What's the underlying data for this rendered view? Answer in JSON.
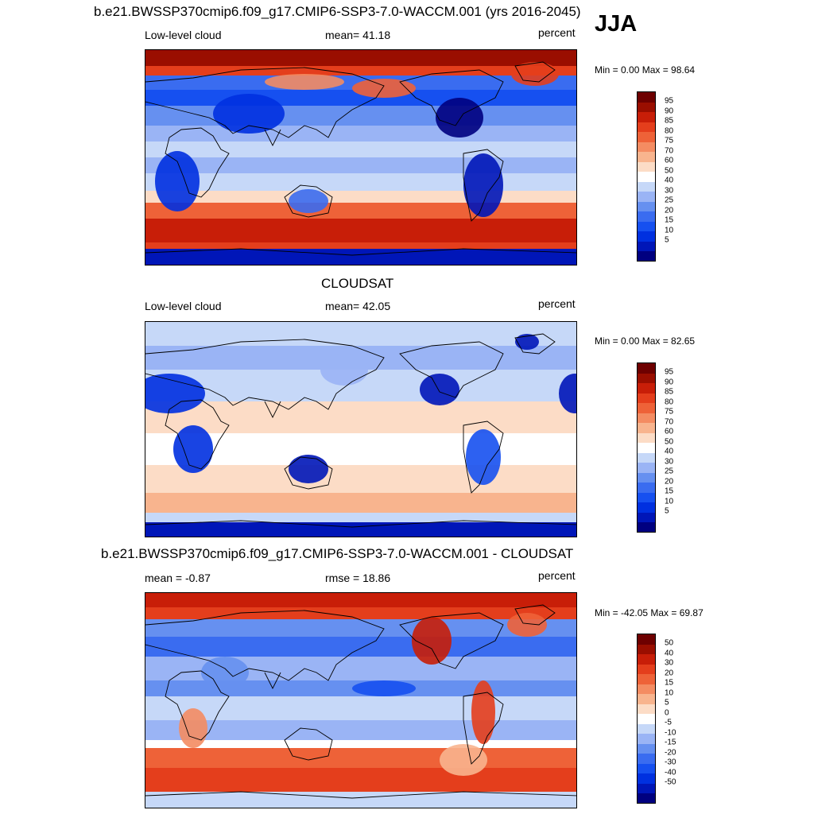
{
  "season": "JJA",
  "panels": [
    {
      "title": "b.e21.BWSSP370cmip6.f09_g17.CMIP6-SSP3-7.0-WACCM.001 (yrs 2016-2045)",
      "left_label": "Low-level cloud",
      "center_label": "mean=  41.18",
      "right_label": "percent",
      "minmax": "Min =   0.00 Max =  98.64",
      "pattern": "model",
      "colorbar": {
        "colors": [
          "#000080",
          "#0016b8",
          "#0030e0",
          "#1650f0",
          "#3a6cf0",
          "#6690f0",
          "#9ab4f5",
          "#c6d8f8",
          "#ffffff",
          "#fcdcc6",
          "#f8b48e",
          "#f48c62",
          "#ee6238",
          "#e43e1c",
          "#c81e08",
          "#9a0e00",
          "#6e0000"
        ],
        "labels": [
          "95",
          "90",
          "85",
          "80",
          "75",
          "70",
          "60",
          "50",
          "40",
          "30",
          "25",
          "20",
          "15",
          "10",
          "5"
        ]
      }
    },
    {
      "title": "CLOUDSAT",
      "left_label": "Low-level cloud",
      "center_label": "mean=  42.05",
      "right_label": "percent",
      "minmax": "Min =   0.00 Max =  82.65",
      "pattern": "obs",
      "colorbar": {
        "colors": [
          "#000080",
          "#0016b8",
          "#0030e0",
          "#1650f0",
          "#3a6cf0",
          "#6690f0",
          "#9ab4f5",
          "#c6d8f8",
          "#ffffff",
          "#fcdcc6",
          "#f8b48e",
          "#f48c62",
          "#ee6238",
          "#e43e1c",
          "#c81e08",
          "#9a0e00",
          "#6e0000"
        ],
        "labels": [
          "95",
          "90",
          "85",
          "80",
          "75",
          "70",
          "60",
          "50",
          "40",
          "30",
          "25",
          "20",
          "15",
          "10",
          "5"
        ]
      }
    },
    {
      "title": "b.e21.BWSSP370cmip6.f09_g17.CMIP6-SSP3-7.0-WACCM.001 - CLOUDSAT",
      "left_label": "mean =  -0.87",
      "center_label": "rmse =  18.86",
      "right_label": "percent",
      "minmax": "Min = -42.05 Max =  69.87",
      "pattern": "diff",
      "colorbar": {
        "colors": [
          "#000080",
          "#0016b8",
          "#0030e0",
          "#1650f0",
          "#3a6cf0",
          "#6690f0",
          "#9ab4f5",
          "#c6d8f8",
          "#ffffff",
          "#fcdcc6",
          "#f8b48e",
          "#f48c62",
          "#ee6238",
          "#e43e1c",
          "#c81e08",
          "#9a0e00",
          "#6e0000"
        ],
        "labels": [
          "50",
          "40",
          "30",
          "20",
          "15",
          "10",
          "5",
          "0",
          "-5",
          "-10",
          "-15",
          "-20",
          "-30",
          "-40",
          "-50"
        ]
      }
    }
  ]
}
